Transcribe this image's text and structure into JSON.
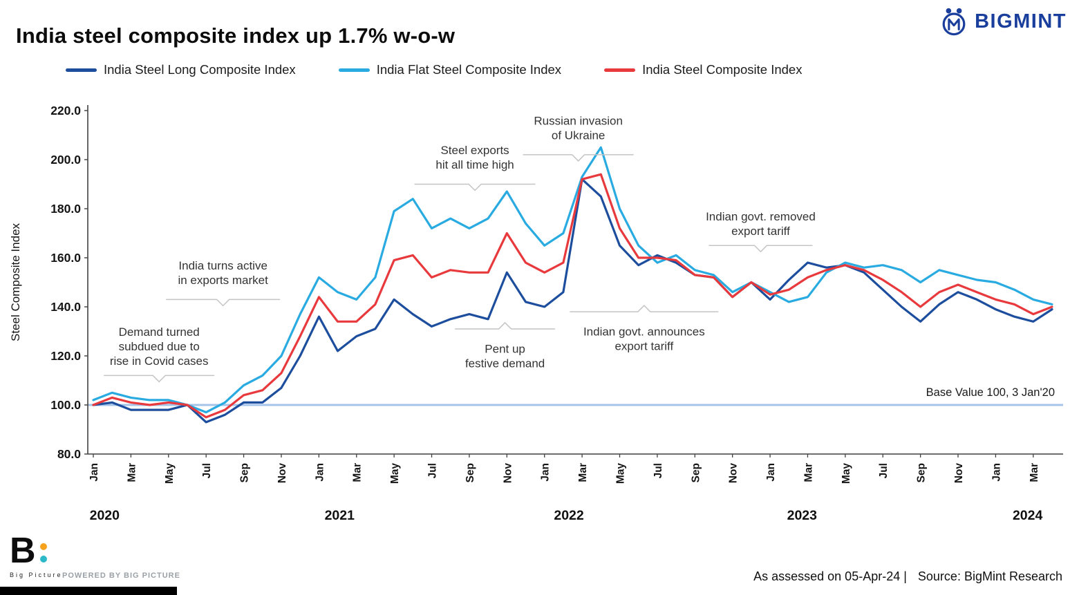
{
  "header": {
    "title": "India steel composite index up 1.7% w-o-w",
    "brand": "BIGMINT"
  },
  "legend": [
    {
      "label": "India Steel Long Composite Index",
      "color": "#1d4e9e"
    },
    {
      "label": "India Flat Steel Composite Index",
      "color": "#29abe2"
    },
    {
      "label": "India Steel Composite Index",
      "color": "#e8393d"
    }
  ],
  "chart_data": {
    "type": "line",
    "title": "India steel composite index up 1.7% w-o-w",
    "ylabel": "Steel Composite Index",
    "ylim": [
      80,
      220
    ],
    "y_ticks": [
      220,
      200,
      180,
      160,
      140,
      120,
      100,
      80
    ],
    "month_ticks": [
      {
        "label": "Jan",
        "i": 0
      },
      {
        "label": "Mar",
        "i": 2
      },
      {
        "label": "May",
        "i": 4
      },
      {
        "label": "Jul",
        "i": 6
      },
      {
        "label": "Sep",
        "i": 8
      },
      {
        "label": "Nov",
        "i": 10
      },
      {
        "label": "Jan",
        "i": 12
      },
      {
        "label": "Mar",
        "i": 14
      },
      {
        "label": "May",
        "i": 16
      },
      {
        "label": "Jul",
        "i": 18
      },
      {
        "label": "Sep",
        "i": 20
      },
      {
        "label": "Nov",
        "i": 22
      },
      {
        "label": "Jan",
        "i": 24
      },
      {
        "label": "Mar",
        "i": 26
      },
      {
        "label": "May",
        "i": 28
      },
      {
        "label": "Jul",
        "i": 30
      },
      {
        "label": "Sep",
        "i": 32
      },
      {
        "label": "Nov",
        "i": 34
      },
      {
        "label": "Jan",
        "i": 36
      },
      {
        "label": "Mar",
        "i": 38
      },
      {
        "label": "May",
        "i": 40
      },
      {
        "label": "Jul",
        "i": 42
      },
      {
        "label": "Sep",
        "i": 44
      },
      {
        "label": "Nov",
        "i": 46
      },
      {
        "label": "Jan",
        "i": 48
      },
      {
        "label": "Mar",
        "i": 50
      }
    ],
    "year_ticks": [
      {
        "label": "2020",
        "i": 0.6
      },
      {
        "label": "2021",
        "i": 13.1
      },
      {
        "label": "2022",
        "i": 25.3
      },
      {
        "label": "2023",
        "i": 37.7
      },
      {
        "label": "2024",
        "i": 49.7
      }
    ],
    "series": [
      {
        "name": "India Steel Long Composite Index",
        "color": "#1d4e9e",
        "values": [
          100,
          101,
          98,
          98,
          98,
          100,
          93,
          96,
          101,
          101,
          107,
          120,
          136,
          122,
          128,
          131,
          143,
          137,
          132,
          135,
          137,
          135,
          154,
          142,
          140,
          146,
          192,
          185,
          165,
          157,
          161,
          158,
          153,
          152,
          144,
          150,
          143,
          151,
          158,
          156,
          157,
          154,
          147,
          140,
          134,
          141,
          146,
          143,
          139,
          136,
          134,
          139
        ]
      },
      {
        "name": "India Flat Steel Composite Index",
        "color": "#29abe2",
        "values": [
          102,
          105,
          103,
          102,
          102,
          100,
          97,
          101,
          108,
          112,
          120,
          137,
          152,
          146,
          143,
          152,
          179,
          184,
          172,
          176,
          172,
          176,
          187,
          174,
          165,
          170,
          193,
          205,
          180,
          165,
          158,
          161,
          155,
          153,
          146,
          150,
          146,
          142,
          144,
          154,
          158,
          156,
          157,
          155,
          150,
          155,
          153,
          151,
          150,
          147,
          143,
          141
        ]
      },
      {
        "name": "India Steel Composite Index",
        "color": "#e8393d",
        "values": [
          100,
          103,
          101,
          100,
          101,
          100,
          95,
          98,
          104,
          106,
          113,
          128,
          144,
          134,
          134,
          141,
          159,
          161,
          152,
          155,
          154,
          154,
          170,
          158,
          154,
          158,
          192,
          194,
          172,
          160,
          160,
          159,
          153,
          152,
          144,
          150,
          145,
          147,
          152,
          155,
          157,
          155,
          151,
          146,
          140,
          146,
          149,
          146,
          143,
          141,
          137,
          140
        ]
      }
    ],
    "baseline": {
      "value": 100,
      "label": "Base Value 100, 3 Jan'20",
      "color": "#a6c3e8"
    },
    "annotations": [
      {
        "lines": [
          "Demand turned",
          "subdued due to",
          "rise in Covid cases"
        ],
        "xi": 3.5,
        "yv": 124,
        "bracket_yv": 112,
        "dir": "down",
        "bw": 160
      },
      {
        "lines": [
          "India turns active",
          "in exports market"
        ],
        "xi": 6.9,
        "yv": 154,
        "bracket_yv": 143,
        "dir": "down",
        "bw": 165
      },
      {
        "lines": [
          "Steel exports",
          "hit all time high"
        ],
        "xi": 20.3,
        "yv": 201,
        "bracket_yv": 190,
        "dir": "down",
        "bw": 175
      },
      {
        "lines": [
          "Pent up",
          "festive demand"
        ],
        "xi": 21.9,
        "yv": 120,
        "bracket_yv": 131,
        "dir": "up",
        "bw": 145
      },
      {
        "lines": [
          "Russian invasion",
          "of Ukraine"
        ],
        "xi": 25.8,
        "yv": 213,
        "bracket_yv": 202,
        "dir": "down",
        "bw": 160
      },
      {
        "lines": [
          "Indian govt. announces",
          "export tariff"
        ],
        "xi": 29.3,
        "yv": 127,
        "bracket_yv": 138,
        "dir": "up",
        "bw": 215
      },
      {
        "lines": [
          "Indian govt. removed",
          "export tariff"
        ],
        "xi": 35.5,
        "yv": 174,
        "bracket_yv": 165,
        "dir": "down",
        "bw": 150
      }
    ]
  },
  "footer": {
    "assessed": "As assessed on 05-Apr-24 |",
    "source": "Source: BigMint Research",
    "powered": "POWERED BY BIG PICTURE",
    "logo_letter": "B",
    "logo_caption": "Big Picture"
  }
}
